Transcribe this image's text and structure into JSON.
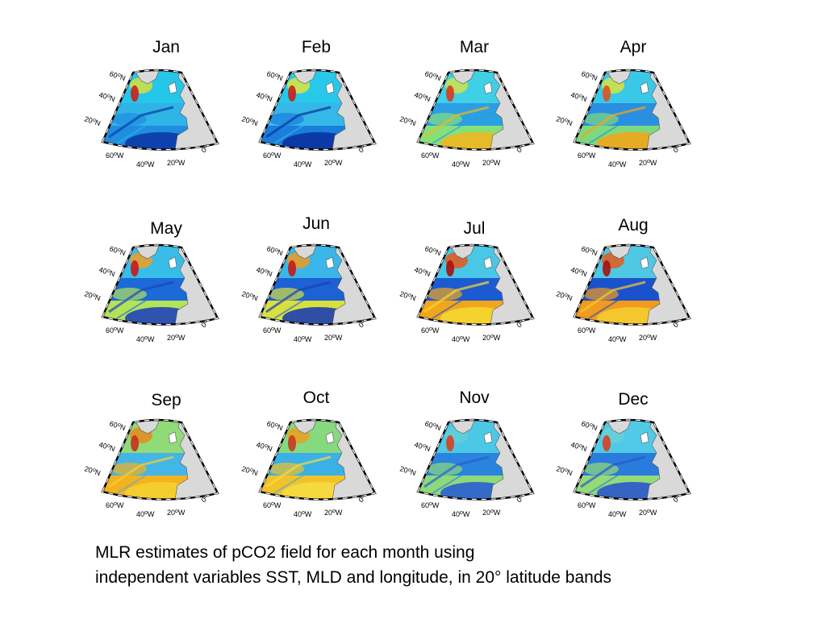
{
  "panels": [
    {
      "month": "Jan",
      "scheme": [
        "#2fb4e6",
        "#26c6e8",
        "#1f8de0",
        "#0b3aa8",
        "#d8e23a",
        "#c8201e"
      ]
    },
    {
      "month": "Feb",
      "scheme": [
        "#35b8e8",
        "#27c8ea",
        "#1a7fdc",
        "#0a33a0",
        "#e0e43a",
        "#c8201e"
      ]
    },
    {
      "month": "Mar",
      "scheme": [
        "#2a9fe3",
        "#3fd0e6",
        "#86e07a",
        "#f0b81e",
        "#cfe34a",
        "#d83a20"
      ]
    },
    {
      "month": "Apr",
      "scheme": [
        "#2a8fe0",
        "#3ac8e8",
        "#7ed97e",
        "#f2a51c",
        "#d8e43c",
        "#e05020"
      ]
    },
    {
      "month": "May",
      "scheme": [
        "#1c6ad8",
        "#38bde8",
        "#b4e25a",
        "#1f45b8",
        "#f0a020",
        "#c81818"
      ]
    },
    {
      "month": "Jun",
      "scheme": [
        "#1c62d4",
        "#3ab6e8",
        "#d8e040",
        "#1d3fb0",
        "#f29a1e",
        "#c81818"
      ]
    },
    {
      "month": "Jul",
      "scheme": [
        "#1c5ad2",
        "#48c7e6",
        "#f2a61e",
        "#f5d830",
        "#e8561a",
        "#a81010"
      ]
    },
    {
      "month": "Aug",
      "scheme": [
        "#1a52cc",
        "#50c8e4",
        "#f29a1e",
        "#f4cc2e",
        "#e45a18",
        "#a81010"
      ]
    },
    {
      "month": "Sep",
      "scheme": [
        "#42b6e6",
        "#90da78",
        "#f4b21e",
        "#f5d030",
        "#e88a1c",
        "#c83020"
      ]
    },
    {
      "month": "Oct",
      "scheme": [
        "#3ab0e6",
        "#86d97e",
        "#f2c22a",
        "#f5dc40",
        "#eaa01e",
        "#c83a20"
      ]
    },
    {
      "month": "Nov",
      "scheme": [
        "#2a84de",
        "#4cc8e6",
        "#8ed97a",
        "#2a5ed0",
        "#60d0d8",
        "#d84020"
      ]
    },
    {
      "month": "Dec",
      "scheme": [
        "#2a7cdc",
        "#50cae6",
        "#94db78",
        "#2a56cc",
        "#66d2d6",
        "#d84020"
      ]
    }
  ],
  "axis_labels": {
    "lat": [
      {
        "deg": "60",
        "hemi": "N"
      },
      {
        "deg": "40",
        "hemi": "N"
      },
      {
        "deg": "20",
        "hemi": "N"
      }
    ],
    "lon": [
      {
        "deg": "60",
        "hemi": "W"
      },
      {
        "deg": "40",
        "hemi": "W"
      },
      {
        "deg": "20",
        "hemi": "W"
      },
      {
        "deg": "0",
        "hemi": ""
      }
    ]
  },
  "land_color": "#d9d9d9",
  "caption": {
    "line1": "MLR estimates of pCO2 field for each month using",
    "line2": "independent variables SST, MLD and longitude, in 20° latitude bands"
  }
}
